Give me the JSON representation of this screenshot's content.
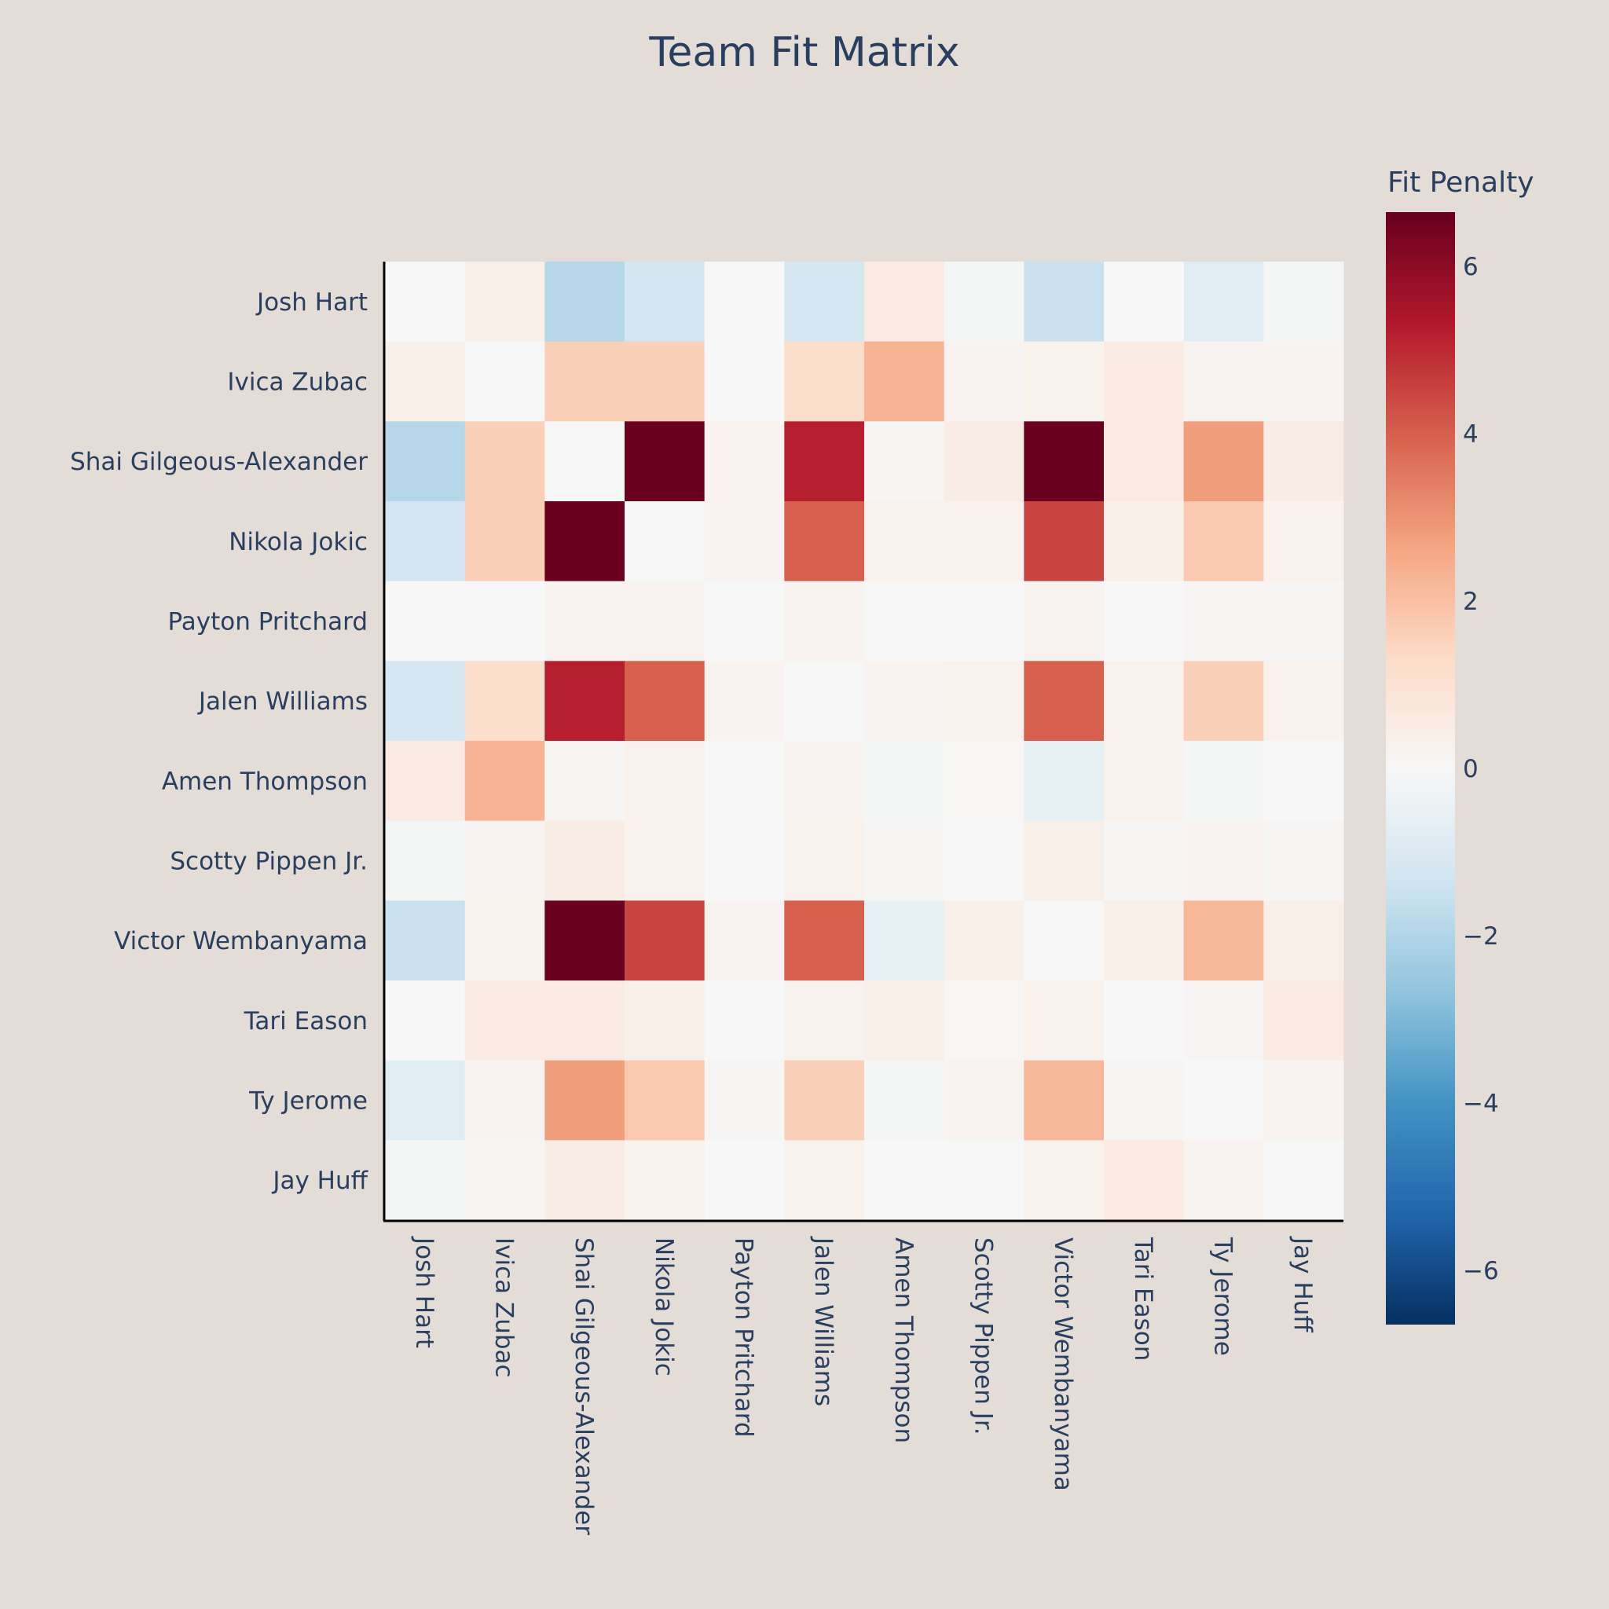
{
  "chart_data": {
    "type": "heatmap",
    "title": "Team Fit Matrix",
    "xlabel": "",
    "ylabel": "",
    "x_categories": [
      "Josh Hart",
      "Ivica Zubac",
      "Shai Gilgeous-Alexander",
      "Nikola Jokic",
      "Payton Pritchard",
      "Jalen Williams",
      "Amen Thompson",
      "Scotty Pippen Jr.",
      "Victor Wembanyama",
      "Tari Eason",
      "Ty Jerome",
      "Jay Huff"
    ],
    "y_categories": [
      "Josh Hart",
      "Ivica Zubac",
      "Shai Gilgeous-Alexander",
      "Nikola Jokic",
      "Payton Pritchard",
      "Jalen Williams",
      "Amen Thompson",
      "Scotty Pippen Jr.",
      "Victor Wembanyama",
      "Tari Eason",
      "Ty Jerome",
      "Jay Huff"
    ],
    "values": [
      [
        0.0,
        0.4,
        -1.9,
        -1.3,
        0.0,
        -1.2,
        0.6,
        -0.1,
        -1.5,
        0.0,
        -0.8,
        -0.1
      ],
      [
        0.4,
        0.0,
        1.6,
        1.6,
        0.0,
        1.2,
        2.3,
        0.2,
        0.3,
        0.6,
        0.2,
        0.2
      ],
      [
        -1.9,
        1.6,
        0.0,
        6.6,
        0.2,
        5.2,
        0.1,
        0.5,
        6.6,
        0.6,
        2.8,
        0.5
      ],
      [
        -1.3,
        1.6,
        6.6,
        0.0,
        0.2,
        4.0,
        0.3,
        0.3,
        4.5,
        0.4,
        1.8,
        0.3
      ],
      [
        0.0,
        0.0,
        0.2,
        0.2,
        0.0,
        0.2,
        0.0,
        0.0,
        0.2,
        0.0,
        0.1,
        0.1
      ],
      [
        -1.2,
        1.2,
        5.2,
        4.0,
        0.2,
        0.0,
        0.2,
        0.3,
        4.0,
        0.3,
        1.6,
        0.3
      ],
      [
        0.6,
        2.3,
        0.1,
        0.3,
        0.0,
        0.2,
        -0.1,
        0.05,
        -0.6,
        0.3,
        -0.1,
        0.0
      ],
      [
        -0.1,
        0.2,
        0.5,
        0.3,
        0.0,
        0.3,
        0.1,
        0.0,
        0.4,
        0.1,
        0.2,
        0.1
      ],
      [
        -1.5,
        0.3,
        6.6,
        4.5,
        0.2,
        4.0,
        -0.6,
        0.4,
        0.0,
        0.4,
        2.2,
        0.4
      ],
      [
        0.0,
        0.6,
        0.6,
        0.4,
        0.0,
        0.3,
        0.4,
        0.05,
        0.3,
        0.0,
        0.1,
        0.6
      ],
      [
        -0.8,
        0.2,
        2.8,
        1.8,
        0.1,
        1.6,
        -0.1,
        0.2,
        2.2,
        0.1,
        0.0,
        0.2
      ],
      [
        -0.1,
        0.1,
        0.5,
        0.3,
        0.0,
        0.3,
        0.0,
        0.0,
        0.3,
        0.6,
        0.2,
        0.0
      ]
    ],
    "colorscale": "RdBu (reversed)",
    "zmin": -6.65,
    "zmax": 6.65,
    "colorbar": {
      "title": "Fit Penalty",
      "tick_values": [
        6,
        4,
        2,
        0,
        -2,
        -4,
        -6
      ],
      "tick_labels": [
        "6",
        "4",
        "2",
        "0",
        "−2",
        "−4",
        "−6"
      ]
    },
    "grid": false,
    "legend": "colorbar-right"
  },
  "colors": {
    "background": "#e4dcd7",
    "text": "#2a3f5f",
    "axis_line": "#000000"
  }
}
